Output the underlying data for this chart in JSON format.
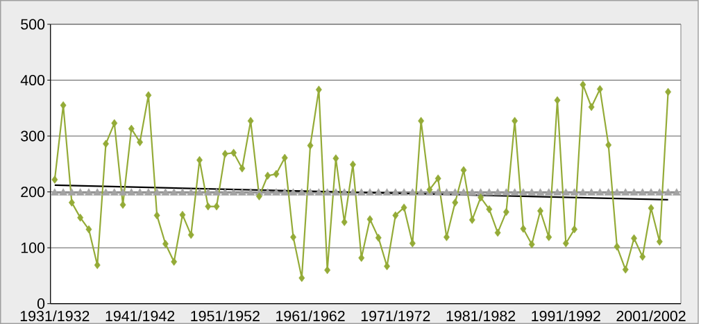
{
  "chart_data": {
    "type": "line",
    "categories": [
      "1931/1932",
      null,
      null,
      null,
      null,
      null,
      null,
      null,
      null,
      null,
      "1941/1942",
      null,
      null,
      null,
      null,
      null,
      null,
      null,
      null,
      null,
      "1951/1952",
      null,
      null,
      null,
      null,
      null,
      null,
      null,
      null,
      null,
      "1961/1962",
      null,
      null,
      null,
      null,
      null,
      null,
      null,
      null,
      null,
      "1971/1972",
      null,
      null,
      null,
      null,
      null,
      null,
      null,
      null,
      null,
      "1981/1982",
      null,
      null,
      null,
      null,
      null,
      null,
      null,
      null,
      null,
      "1991/1992",
      null,
      null,
      null,
      null,
      null,
      null,
      null,
      null,
      null,
      "2001/2002",
      null,
      null,
      null
    ],
    "ylim": [
      0,
      500
    ],
    "yticks": [
      0,
      100,
      200,
      300,
      400,
      500
    ],
    "grid": "y",
    "series": [
      {
        "color": "#a3a3a3",
        "marker": "triangle",
        "values": [
          198,
          198,
          198,
          198,
          198,
          198,
          198,
          198,
          198,
          198,
          198,
          198,
          198,
          198,
          198,
          198,
          198,
          198,
          198,
          198,
          198,
          198,
          198,
          198,
          198,
          198,
          198,
          198,
          198,
          198,
          198,
          198,
          198,
          198,
          198,
          198,
          198,
          198,
          198,
          198,
          198,
          198,
          198,
          198,
          198,
          198,
          198,
          198,
          198,
          198,
          198,
          198,
          198,
          198,
          198,
          198,
          198,
          198,
          198,
          198,
          198,
          198,
          198,
          198,
          198,
          198,
          198,
          198,
          198,
          198,
          198,
          198,
          198,
          198
        ]
      },
      {
        "color": "#000000",
        "values": [
          212,
          null,
          null,
          null,
          null,
          null,
          null,
          null,
          null,
          null,
          null,
          null,
          null,
          null,
          null,
          null,
          null,
          null,
          null,
          null,
          null,
          null,
          null,
          null,
          null,
          null,
          null,
          null,
          null,
          null,
          null,
          null,
          null,
          null,
          null,
          null,
          null,
          null,
          null,
          null,
          null,
          null,
          null,
          null,
          null,
          null,
          null,
          null,
          null,
          null,
          null,
          null,
          null,
          null,
          null,
          null,
          null,
          null,
          null,
          null,
          null,
          null,
          null,
          null,
          null,
          null,
          null,
          null,
          null,
          null,
          null,
          null,
          186,
          null
        ]
      },
      {
        "color": "#94ab37",
        "marker": "diamond",
        "values": [
          222,
          355,
          181,
          154,
          133,
          69,
          286,
          323,
          177,
          313,
          289,
          373,
          158,
          107,
          75,
          159,
          123,
          257,
          174,
          174,
          268,
          270,
          242,
          327,
          192,
          229,
          232,
          261,
          119,
          46,
          283,
          383,
          60,
          260,
          146,
          249,
          82,
          151,
          118,
          67,
          158,
          172,
          108,
          327,
          204,
          224,
          119,
          181,
          239,
          150,
          190,
          169,
          127,
          164,
          327,
          134,
          106,
          166,
          119,
          364,
          108,
          133,
          392,
          352,
          384,
          284,
          102,
          61,
          117,
          84,
          171,
          111,
          379,
          null
        ]
      }
    ]
  }
}
